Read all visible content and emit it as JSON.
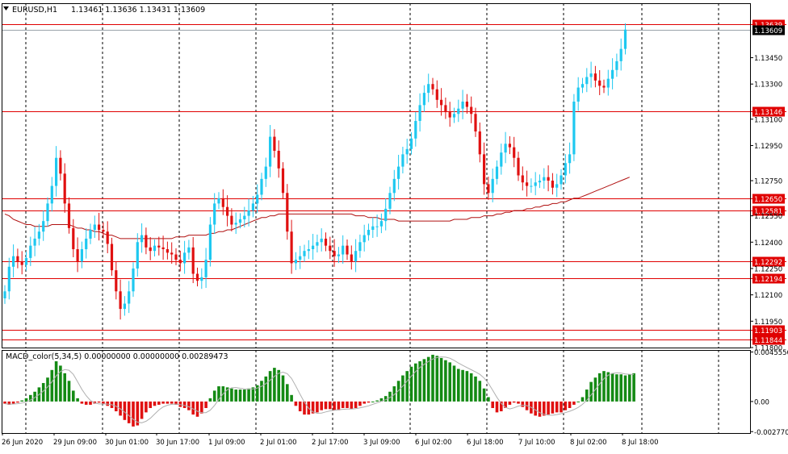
{
  "header": {
    "symbol": "EURUSD,H1",
    "ohlc": "1.13461 1.13636 1.13431 1.13609"
  },
  "macd_header": {
    "label": "MACD_color(5,34,5) 0.00000000 0.00000000 0.00289473"
  },
  "colors": {
    "bull": "#1ec8f0",
    "bear": "#e01010",
    "level_line": "#e00000",
    "ma": "#b01010",
    "hist_pos": "#148a14",
    "hist_neg": "#e01010",
    "signal": "#b0b0b0",
    "grid": "#000000",
    "price_tag_bg": "#e00000",
    "current_tag_bg": "#000000"
  },
  "chart_data": {
    "type": "candlestick",
    "price_axis": {
      "min": 1.118,
      "max": 1.1376,
      "ticks": [
        "1.13450",
        "1.13300",
        "1.13100",
        "1.12950",
        "1.12750",
        "1.12550",
        "1.12400",
        "1.12250",
        "1.12100",
        "1.11950",
        "1.11800"
      ]
    },
    "current_price": "1.13609",
    "levels": [
      "1.13639",
      "1.13146",
      "1.12650",
      "1.12581",
      "1.12292",
      "1.12194",
      "1.11903",
      "1.11844"
    ],
    "time_labels": [
      "26 Jun 2020",
      "29 Jun 09:00",
      "30 Jun 01:00",
      "30 Jun 17:00",
      "1 Jul 09:00",
      "2 Jul 01:00",
      "2 Jul 17:00",
      "3 Jul 09:00",
      "6 Jul 02:00",
      "6 Jul 18:00",
      "7 Jul 10:00",
      "8 Jul 02:00",
      "8 Jul 18:00"
    ],
    "close_series": [
      1.1212,
      1.1226,
      1.1232,
      1.1229,
      1.1227,
      1.1231,
      1.1238,
      1.1242,
      1.1246,
      1.1252,
      1.1262,
      1.1272,
      1.1288,
      1.1279,
      1.1262,
      1.1248,
      1.1236,
      1.1229,
      1.1236,
      1.1242,
      1.1247,
      1.125,
      1.1247,
      1.1246,
      1.1239,
      1.1224,
      1.1212,
      1.1202,
      1.1205,
      1.1212,
      1.1225,
      1.124,
      1.1244,
      1.1237,
      1.1235,
      1.1238,
      1.1237,
      1.1236,
      1.1234,
      1.1233,
      1.123,
      1.1228,
      1.1234,
      1.1237,
      1.1222,
      1.1218,
      1.122,
      1.123,
      1.125,
      1.1262,
      1.1265,
      1.126,
      1.1255,
      1.125,
      1.1251,
      1.1253,
      1.1255,
      1.1258,
      1.1262,
      1.1267,
      1.1276,
      1.1283,
      1.13,
      1.1292,
      1.1282,
      1.1268,
      1.1246,
      1.1228,
      1.123,
      1.1232,
      1.1235,
      1.1236,
      1.1238,
      1.124,
      1.1242,
      1.1238,
      1.1235,
      1.1232,
      1.1233,
      1.1238,
      1.1233,
      1.1229,
      1.1235,
      1.124,
      1.1244,
      1.1247,
      1.1249,
      1.1249,
      1.1252,
      1.1259,
      1.1268,
      1.1276,
      1.1283,
      1.129,
      1.1293,
      1.1299,
      1.1309,
      1.1318,
      1.1325,
      1.133,
      1.1327,
      1.1321,
      1.1318,
      1.1314,
      1.1311,
      1.1313,
      1.1316,
      1.132,
      1.1317,
      1.1313,
      1.1303,
      1.129,
      1.1273,
      1.1268,
      1.1276,
      1.1283,
      1.1291,
      1.1296,
      1.1294,
      1.1288,
      1.1278,
      1.1274,
      1.1272,
      1.1272,
      1.1274,
      1.1275,
      1.1277,
      1.1275,
      1.1271,
      1.1273,
      1.1278,
      1.1285,
      1.129,
      1.132,
      1.1328,
      1.133,
      1.1334,
      1.1336,
      1.1332,
      1.1329,
      1.1328,
      1.1333,
      1.1338,
      1.1343,
      1.135,
      1.1361
    ],
    "ma_series": [
      1.1256,
      1.1255,
      1.1253,
      1.1252,
      1.1251,
      1.125,
      1.125,
      1.1249,
      1.1249,
      1.1249,
      1.1249,
      1.125,
      1.125,
      1.125,
      1.125,
      1.125,
      1.1249,
      1.1248,
      1.1248,
      1.1247,
      1.1247,
      1.1246,
      1.1246,
      1.1245,
      1.1244,
      1.1244,
      1.1243,
      1.1242,
      1.1242,
      1.1242,
      1.1242,
      1.1242,
      1.1242,
      1.1242,
      1.1242,
      1.1242,
      1.1242,
      1.1242,
      1.1242,
      1.1242,
      1.1243,
      1.1243,
      1.1243,
      1.1244,
      1.1244,
      1.1244,
      1.1244,
      1.1244,
      1.1245,
      1.1245,
      1.1246,
      1.1246,
      1.1247,
      1.1247,
      1.1248,
      1.1249,
      1.125,
      1.1251,
      1.1252,
      1.1253,
      1.1254,
      1.1254,
      1.1255,
      1.1255,
      1.1256,
      1.1256,
      1.1256,
      1.1256,
      1.1256,
      1.1256,
      1.1256,
      1.1256,
      1.1256,
      1.1256,
      1.1256,
      1.1256,
      1.1256,
      1.1256,
      1.1256,
      1.1256,
      1.1256,
      1.1256,
      1.1255,
      1.1255,
      1.1255,
      1.1254,
      1.1254,
      1.1254,
      1.1253,
      1.1253,
      1.1253,
      1.1253,
      1.1252,
      1.1252,
      1.1252,
      1.1252,
      1.1252,
      1.1252,
      1.1252,
      1.1252,
      1.1252,
      1.1252,
      1.1252,
      1.1252,
      1.1252,
      1.1253,
      1.1253,
      1.1253,
      1.1253,
      1.1254,
      1.1254,
      1.1254,
      1.1255,
      1.1255,
      1.1255,
      1.1256,
      1.1256,
      1.1257,
      1.1257,
      1.1258,
      1.1258,
      1.1258,
      1.1259,
      1.1259,
      1.126,
      1.126,
      1.1261,
      1.1261,
      1.1262,
      1.1262,
      1.1263,
      1.1263,
      1.1264,
      1.1265,
      1.1265,
      1.1266,
      1.1267,
      1.1268,
      1.1269,
      1.127,
      1.1271,
      1.1272,
      1.1273,
      1.1274,
      1.1275,
      1.1276,
      1.1277
    ],
    "macd_axis": {
      "min": -0.0029,
      "max": 0.00474,
      "ticks": [
        "0.0045556",
        "0.00",
        "-0.0027705"
      ]
    },
    "macd_hist": [
      -0.0002,
      -0.0003,
      -0.0002,
      -0.0001,
      0.0001,
      0.0003,
      0.0006,
      0.0009,
      0.0013,
      0.0017,
      0.0022,
      0.0029,
      0.0037,
      0.0033,
      0.0026,
      0.0019,
      0.001,
      0.0003,
      -0.0002,
      -0.0003,
      -0.0003,
      -0.0002,
      -0.0001,
      -0.0002,
      -0.0004,
      -0.0006,
      -0.0009,
      -0.0013,
      -0.0017,
      -0.002,
      -0.0023,
      -0.0022,
      -0.0016,
      -0.001,
      -0.0006,
      -0.0004,
      -0.0003,
      -0.0002,
      -0.0002,
      -0.0002,
      -0.0003,
      -0.0005,
      -0.0006,
      -0.0008,
      -0.0012,
      -0.0014,
      -0.0011,
      -0.0006,
      0.0003,
      0.001,
      0.0014,
      0.0014,
      0.0013,
      0.0012,
      0.0011,
      0.0011,
      0.0011,
      0.0012,
      0.0013,
      0.0015,
      0.0019,
      0.0023,
      0.0028,
      0.0031,
      0.0029,
      0.0024,
      0.0016,
      0.0006,
      -0.0004,
      -0.0009,
      -0.0012,
      -0.0012,
      -0.0011,
      -0.001,
      -0.0008,
      -0.0007,
      -0.0007,
      -0.0008,
      -0.0008,
      -0.0006,
      -0.0006,
      -0.0007,
      -0.0006,
      -0.0004,
      -0.0002,
      -0.0001,
      0.0,
      0.0001,
      0.0003,
      0.0005,
      0.0009,
      0.0014,
      0.0019,
      0.0024,
      0.0028,
      0.0032,
      0.0035,
      0.0037,
      0.0039,
      0.0041,
      0.0043,
      0.0042,
      0.004,
      0.0038,
      0.0036,
      0.0033,
      0.003,
      0.0029,
      0.0028,
      0.0026,
      0.0023,
      0.0019,
      0.0012,
      0.0004,
      -0.0006,
      -0.001,
      -0.0009,
      -0.0006,
      -0.0003,
      -0.0001,
      -0.0002,
      -0.0005,
      -0.0008,
      -0.0011,
      -0.0013,
      -0.0014,
      -0.0013,
      -0.0012,
      -0.0011,
      -0.001,
      -0.001,
      -0.0008,
      -0.0006,
      -0.0003,
      0.0,
      0.0004,
      0.0011,
      0.0018,
      0.0022,
      0.0026,
      0.0028,
      0.0027,
      0.0026,
      0.0025,
      0.0025,
      0.0024,
      0.0025,
      0.0026
    ]
  }
}
